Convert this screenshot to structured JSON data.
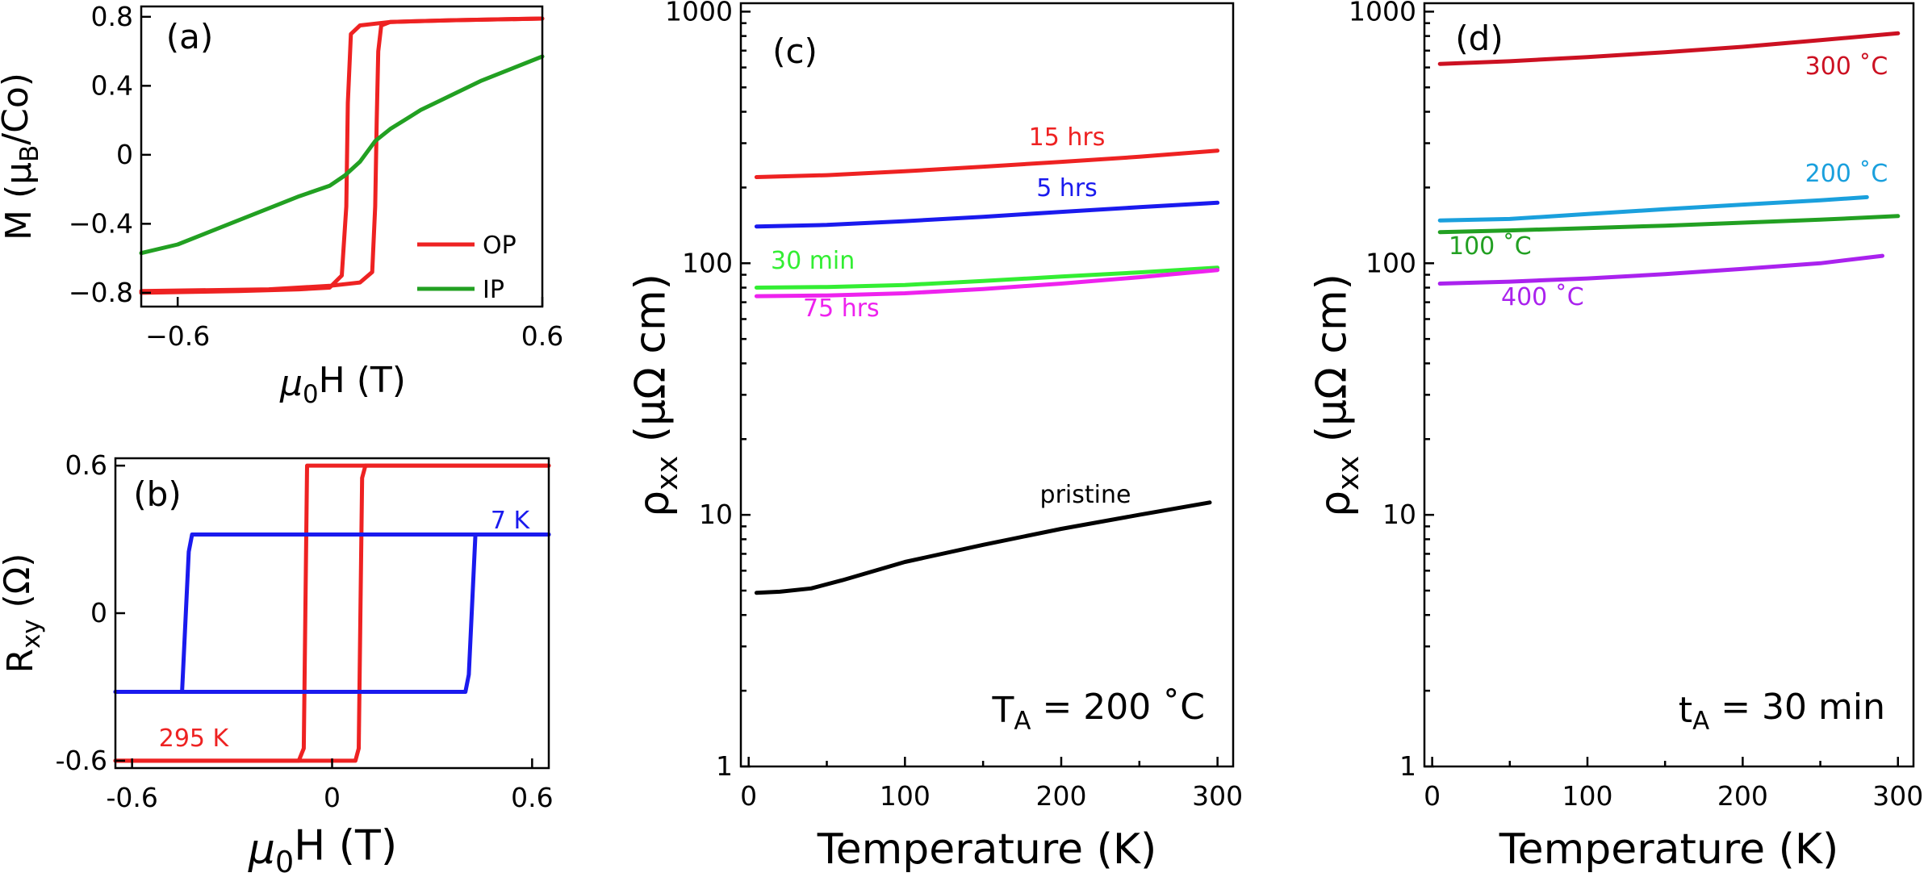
{
  "chart_data": [
    {
      "panel": "(a)",
      "type": "line",
      "xlabel": "μ0H (T)",
      "ylabel": "M (μB/Co)",
      "xlim": [
        -0.72,
        0.6
      ],
      "ylim": [
        -0.88,
        0.86
      ],
      "xticks": [
        -0.6,
        0.6
      ],
      "xtick_labels": [
        "−0.6",
        "0.6"
      ],
      "yticks": [
        -0.8,
        -0.4,
        0,
        0.4,
        0.8
      ],
      "ytick_labels": [
        "−0.8",
        "−0.4",
        "0",
        "0.4",
        "0.8"
      ],
      "legend": {
        "placement": "bottom-right",
        "entries": [
          {
            "label": "OP",
            "color": "#ee2222"
          },
          {
            "label": "IP",
            "color": "#22a022"
          }
        ]
      },
      "series": [
        {
          "name": "OP",
          "color": "#ee2222",
          "x": [
            -0.72,
            -0.4,
            -0.2,
            -0.1,
            -0.06,
            -0.045,
            -0.04,
            -0.03,
            0.0,
            0.1,
            0.3,
            0.6
          ],
          "y": [
            -0.8,
            -0.79,
            -0.78,
            -0.77,
            -0.7,
            -0.3,
            0.3,
            0.7,
            0.75,
            0.77,
            0.78,
            0.79
          ]
        },
        {
          "name": "OP",
          "color": "#ee2222",
          "x": [
            0.6,
            0.3,
            0.1,
            0.07,
            0.06,
            0.055,
            0.05,
            0.04,
            0.0,
            -0.1,
            -0.3,
            -0.72
          ],
          "y": [
            0.79,
            0.78,
            0.77,
            0.75,
            0.6,
            0.2,
            -0.3,
            -0.68,
            -0.74,
            -0.76,
            -0.78,
            -0.79
          ]
        },
        {
          "name": "IP",
          "color": "#22a022",
          "x": [
            -0.72,
            -0.6,
            -0.4,
            -0.2,
            -0.1,
            -0.05,
            0.0,
            0.05,
            0.1,
            0.2,
            0.4,
            0.6
          ],
          "y": [
            -0.57,
            -0.52,
            -0.38,
            -0.24,
            -0.18,
            -0.12,
            -0.04,
            0.08,
            0.15,
            0.26,
            0.43,
            0.57
          ]
        }
      ]
    },
    {
      "panel": "(b)",
      "type": "line",
      "xlabel": "μ0H (T)",
      "ylabel": "Rxy (Ω)",
      "xlim": [
        -0.65,
        0.65
      ],
      "ylim": [
        -0.63,
        0.63
      ],
      "xticks": [
        -0.6,
        0,
        0.6
      ],
      "xtick_labels": [
        "-0.6",
        "0",
        "0.6"
      ],
      "yticks": [
        -0.6,
        0,
        0.6
      ],
      "ytick_labels": [
        "-0.6",
        "0",
        "0.6"
      ],
      "series": [
        {
          "name": "295 K",
          "color": "#ee2222",
          "x": [
            -0.65,
            -0.1,
            -0.085,
            -0.075,
            0.65
          ],
          "y": [
            -0.6,
            -0.6,
            -0.55,
            0.6,
            0.6
          ]
        },
        {
          "name": "295 K",
          "color": "#ee2222",
          "x": [
            0.65,
            0.1,
            0.09,
            0.08,
            0.07,
            -0.65
          ],
          "y": [
            0.6,
            0.6,
            0.55,
            -0.55,
            -0.6,
            -0.6
          ]
        },
        {
          "name": "7 K",
          "color": "#1a1aee",
          "x": [
            -0.65,
            0.4,
            0.41,
            0.43,
            0.65
          ],
          "y": [
            -0.32,
            -0.32,
            -0.25,
            0.32,
            0.32
          ]
        },
        {
          "name": "7 K",
          "color": "#1a1aee",
          "x": [
            0.65,
            -0.42,
            -0.43,
            -0.45,
            -0.65
          ],
          "y": [
            0.32,
            0.32,
            0.25,
            -0.32,
            -0.32
          ]
        }
      ]
    },
    {
      "panel": "(c)",
      "type": "line",
      "xlabel": "Temperature (K)",
      "ylabel": "ρxx (μΩ cm)",
      "log_y": true,
      "xlim": [
        -5,
        310
      ],
      "ylim": [
        1,
        1080
      ],
      "xticks": [
        0,
        100,
        200,
        300
      ],
      "xtick_labels": [
        "0",
        "100",
        "200",
        "300"
      ],
      "yticks": [
        1,
        10,
        100,
        1000
      ],
      "ytick_labels": [
        "1",
        "10",
        "100",
        "1000"
      ],
      "annotation": "TA = 200 ˚C",
      "series": [
        {
          "name": "15 hrs",
          "color": "#ee2222",
          "x": [
            5,
            50,
            100,
            150,
            200,
            250,
            300
          ],
          "y": [
            220,
            224,
            232,
            242,
            253,
            265,
            280
          ]
        },
        {
          "name": "5 hrs",
          "color": "#1a1aee",
          "x": [
            5,
            50,
            100,
            150,
            200,
            250,
            300
          ],
          "y": [
            140,
            142,
            147,
            153,
            160,
            167,
            174
          ]
        },
        {
          "name": "30 min",
          "color": "#33ee33",
          "x": [
            5,
            50,
            100,
            150,
            200,
            250,
            300
          ],
          "y": [
            80,
            80.5,
            82,
            85,
            88.5,
            92,
            96
          ]
        },
        {
          "name": "75 hrs",
          "color": "#ee22ee",
          "x": [
            5,
            50,
            100,
            150,
            200,
            250,
            300
          ],
          "y": [
            74,
            74.5,
            76,
            79,
            83,
            88,
            94
          ]
        },
        {
          "name": "pristine",
          "color": "#000000",
          "x": [
            5,
            20,
            40,
            60,
            100,
            150,
            200,
            250,
            295
          ],
          "y": [
            4.9,
            4.95,
            5.1,
            5.5,
            6.5,
            7.6,
            8.8,
            10,
            11.2
          ]
        }
      ]
    },
    {
      "panel": "(d)",
      "type": "line",
      "xlabel": "Temperature (K)",
      "ylabel": "ρxx (μΩ cm)",
      "log_y": true,
      "xlim": [
        -5,
        310
      ],
      "ylim": [
        1,
        1080
      ],
      "xticks": [
        0,
        100,
        200,
        300
      ],
      "xtick_labels": [
        "0",
        "100",
        "200",
        "300"
      ],
      "yticks": [
        1,
        10,
        100,
        1000
      ],
      "ytick_labels": [
        "1",
        "10",
        "100",
        "1000"
      ],
      "annotation": "tA = 30 min",
      "series": [
        {
          "name": "300 ˚C",
          "color": "#cc1122",
          "x": [
            5,
            50,
            100,
            150,
            200,
            250,
            300
          ],
          "y": [
            620,
            635,
            660,
            690,
            725,
            770,
            820
          ]
        },
        {
          "name": "200 ˚C",
          "color": "#1aa0dd",
          "x": [
            5,
            50,
            100,
            150,
            200,
            250,
            280
          ],
          "y": [
            148,
            150,
            157,
            164,
            171,
            178,
            183
          ]
        },
        {
          "name": "100 ˚C",
          "color": "#22a022",
          "x": [
            5,
            50,
            100,
            150,
            200,
            250,
            300
          ],
          "y": [
            133,
            135,
            138,
            141,
            145,
            149,
            154
          ]
        },
        {
          "name": "400 ˚C",
          "color": "#aa22ee",
          "x": [
            5,
            50,
            100,
            150,
            200,
            250,
            290
          ],
          "y": [
            83,
            84.5,
            87,
            90.5,
            95,
            100,
            107
          ]
        }
      ]
    }
  ]
}
